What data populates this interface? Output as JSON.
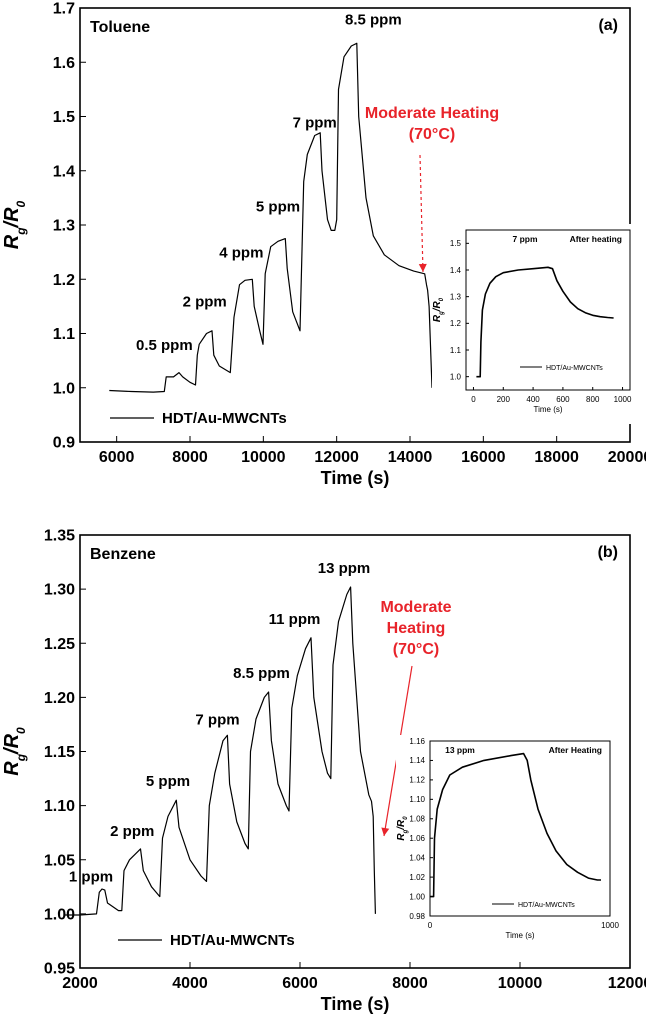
{
  "chart_data": [
    {
      "id": "a",
      "type": "line",
      "panel_label": "(a)",
      "gas_label": "Toluene",
      "xlabel": "Time (s)",
      "ylabel_main": "R",
      "ylabel_sub1": "g",
      "ylabel_mid": "/R",
      "ylabel_sub2": "0",
      "xlim": [
        5000,
        20000
      ],
      "ylim": [
        0.9,
        1.7
      ],
      "xticks": [
        6000,
        8000,
        10000,
        12000,
        14000,
        16000,
        18000,
        20000
      ],
      "yticks": [
        0.9,
        1.0,
        1.1,
        1.2,
        1.3,
        1.4,
        1.5,
        1.6,
        1.7
      ],
      "ytick_labels": [
        "0.9",
        "1.0",
        "1.1",
        "1.2",
        "1.3",
        "1.4",
        "1.5",
        "1.6",
        "1.7"
      ],
      "legend": "HDT/Au-MWCNTs",
      "heating_note_line1": "Moderate Heating",
      "heating_note_line2": "(70°C)",
      "accent_color": "#e8232a",
      "concentration_labels": [
        {
          "text": "0.5 ppm",
          "x": 7300,
          "y": 1.07
        },
        {
          "text": "2 ppm",
          "x": 8400,
          "y": 1.15
        },
        {
          "text": "4 ppm",
          "x": 9400,
          "y": 1.24
        },
        {
          "text": "5 ppm",
          "x": 10400,
          "y": 1.325
        },
        {
          "text": "7 ppm",
          "x": 11400,
          "y": 1.48
        },
        {
          "text": "8.5 ppm",
          "x": 13000,
          "y": 1.67
        }
      ],
      "series": [
        {
          "values": [
            [
              5800,
              0.995
            ],
            [
              6400,
              0.993
            ],
            [
              7000,
              0.992
            ],
            [
              7300,
              0.993
            ],
            [
              7350,
              1.02
            ],
            [
              7550,
              1.02
            ],
            [
              7700,
              1.028
            ],
            [
              7800,
              1.02
            ],
            [
              8000,
              1.01
            ],
            [
              8150,
              1.005
            ],
            [
              8200,
              1.06
            ],
            [
              8250,
              1.08
            ],
            [
              8450,
              1.1
            ],
            [
              8600,
              1.105
            ],
            [
              8650,
              1.06
            ],
            [
              8800,
              1.04
            ],
            [
              9100,
              1.028
            ],
            [
              9200,
              1.13
            ],
            [
              9350,
              1.19
            ],
            [
              9500,
              1.198
            ],
            [
              9700,
              1.2
            ],
            [
              9750,
              1.15
            ],
            [
              9900,
              1.105
            ],
            [
              9990,
              1.08
            ],
            [
              10050,
              1.21
            ],
            [
              10200,
              1.26
            ],
            [
              10400,
              1.27
            ],
            [
              10600,
              1.275
            ],
            [
              10650,
              1.22
            ],
            [
              10800,
              1.14
            ],
            [
              11000,
              1.105
            ],
            [
              11100,
              1.38
            ],
            [
              11200,
              1.43
            ],
            [
              11400,
              1.465
            ],
            [
              11550,
              1.47
            ],
            [
              11600,
              1.4
            ],
            [
              11750,
              1.31
            ],
            [
              11850,
              1.29
            ],
            [
              11950,
              1.29
            ],
            [
              12000,
              1.31
            ],
            [
              12050,
              1.55
            ],
            [
              12200,
              1.61
            ],
            [
              12400,
              1.63
            ],
            [
              12550,
              1.635
            ],
            [
              12600,
              1.5
            ],
            [
              12800,
              1.35
            ],
            [
              13000,
              1.28
            ],
            [
              13300,
              1.245
            ],
            [
              13700,
              1.225
            ],
            [
              14100,
              1.215
            ],
            [
              14400,
              1.21
            ],
            [
              14450,
              1.19
            ],
            [
              14480,
              1.18
            ],
            [
              14520,
              1.15
            ],
            [
              14600,
              1.0
            ]
          ]
        }
      ],
      "inset": {
        "type": "line",
        "title": "After heating",
        "peak_label": "7 ppm",
        "legend": "HDT/Au-MWCNTs",
        "xlabel": "Time (s)",
        "ylabel_main": "R",
        "ylabel_sub1": "g",
        "ylabel_mid": "/R",
        "ylabel_sub2": "0",
        "xlim": [
          -50,
          1050
        ],
        "ylim": [
          0.95,
          1.55
        ],
        "xticks": [
          0,
          200,
          400,
          600,
          800,
          1000
        ],
        "yticks": [
          1.0,
          1.1,
          1.2,
          1.3,
          1.4,
          1.5
        ],
        "ytick_labels": [
          "1.0",
          "1.1",
          "1.2",
          "1.3",
          "1.4",
          "1.5"
        ],
        "values": [
          [
            20,
            1.0
          ],
          [
            45,
            1.0
          ],
          [
            50,
            1.13
          ],
          [
            60,
            1.25
          ],
          [
            80,
            1.31
          ],
          [
            110,
            1.35
          ],
          [
            150,
            1.375
          ],
          [
            200,
            1.39
          ],
          [
            300,
            1.4
          ],
          [
            400,
            1.405
          ],
          [
            500,
            1.41
          ],
          [
            530,
            1.405
          ],
          [
            560,
            1.36
          ],
          [
            600,
            1.32
          ],
          [
            650,
            1.28
          ],
          [
            700,
            1.255
          ],
          [
            750,
            1.24
          ],
          [
            800,
            1.23
          ],
          [
            850,
            1.225
          ],
          [
            900,
            1.222
          ],
          [
            940,
            1.22
          ]
        ]
      }
    },
    {
      "id": "b",
      "type": "line",
      "panel_label": "(b)",
      "gas_label": "Benzene",
      "xlabel": "Time (s)",
      "ylabel_main": "R",
      "ylabel_sub1": "g",
      "ylabel_mid": "/R",
      "ylabel_sub2": "0",
      "xlim": [
        2000,
        12000
      ],
      "ylim": [
        0.95,
        1.35
      ],
      "xticks": [
        2000,
        4000,
        6000,
        8000,
        10000,
        12000
      ],
      "yticks": [
        0.95,
        1.0,
        1.05,
        1.1,
        1.15,
        1.2,
        1.25,
        1.3,
        1.35
      ],
      "ytick_labels": [
        "0.95",
        "1.00",
        "1.05",
        "1.10",
        "1.15",
        "1.20",
        "1.25",
        "1.30",
        "1.35"
      ],
      "legend": "HDT/Au-MWCNTs",
      "heating_note_line1": "Moderate",
      "heating_note_line2": "Heating",
      "heating_note_line3": "(70°C)",
      "accent_color": "#e8232a",
      "concentration_labels": [
        {
          "text": "1 ppm",
          "x": 2200,
          "y": 1.03
        },
        {
          "text": "2 ppm",
          "x": 2950,
          "y": 1.072
        },
        {
          "text": "5 ppm",
          "x": 3600,
          "y": 1.118
        },
        {
          "text": "7 ppm",
          "x": 4500,
          "y": 1.175
        },
        {
          "text": "8.5 ppm",
          "x": 5300,
          "y": 1.218
        },
        {
          "text": "11 ppm",
          "x": 5900,
          "y": 1.268
        },
        {
          "text": "13 ppm",
          "x": 6800,
          "y": 1.315
        }
      ],
      "series": [
        {
          "values": [
            [
              1700,
              0.999
            ],
            [
              2000,
              0.999
            ],
            [
              2300,
              1.0
            ],
            [
              2350,
              1.02
            ],
            [
              2400,
              1.023
            ],
            [
              2450,
              1.022
            ],
            [
              2500,
              1.01
            ],
            [
              2700,
              1.003
            ],
            [
              2760,
              1.003
            ],
            [
              2800,
              1.04
            ],
            [
              2900,
              1.05
            ],
            [
              3100,
              1.06
            ],
            [
              3150,
              1.04
            ],
            [
              3300,
              1.025
            ],
            [
              3450,
              1.016
            ],
            [
              3500,
              1.07
            ],
            [
              3600,
              1.09
            ],
            [
              3750,
              1.105
            ],
            [
              3800,
              1.08
            ],
            [
              4000,
              1.05
            ],
            [
              4200,
              1.035
            ],
            [
              4300,
              1.03
            ],
            [
              4350,
              1.1
            ],
            [
              4450,
              1.13
            ],
            [
              4600,
              1.16
            ],
            [
              4680,
              1.165
            ],
            [
              4720,
              1.12
            ],
            [
              4850,
              1.085
            ],
            [
              5000,
              1.065
            ],
            [
              5060,
              1.06
            ],
            [
              5100,
              1.15
            ],
            [
              5200,
              1.18
            ],
            [
              5350,
              1.2
            ],
            [
              5430,
              1.205
            ],
            [
              5480,
              1.16
            ],
            [
              5600,
              1.12
            ],
            [
              5750,
              1.1
            ],
            [
              5800,
              1.095
            ],
            [
              5850,
              1.19
            ],
            [
              5950,
              1.22
            ],
            [
              6100,
              1.245
            ],
            [
              6200,
              1.255
            ],
            [
              6250,
              1.2
            ],
            [
              6400,
              1.15
            ],
            [
              6500,
              1.13
            ],
            [
              6560,
              1.125
            ],
            [
              6600,
              1.23
            ],
            [
              6700,
              1.27
            ],
            [
              6850,
              1.295
            ],
            [
              6920,
              1.302
            ],
            [
              6960,
              1.25
            ],
            [
              7100,
              1.15
            ],
            [
              7250,
              1.11
            ],
            [
              7300,
              1.104
            ],
            [
              7330,
              1.09
            ],
            [
              7350,
              1.04
            ],
            [
              7370,
              1.0
            ]
          ]
        }
      ],
      "inset": {
        "type": "line",
        "title": "After Heating",
        "peak_label": "13 ppm",
        "legend": "HDT/Au-MWCNTs",
        "xlabel": "Time (s)",
        "ylabel_main": "R",
        "ylabel_sub1": "g",
        "ylabel_mid": "/R",
        "ylabel_sub2": "0",
        "xlim": [
          0,
          1000
        ],
        "ylim": [
          0.98,
          1.16
        ],
        "xticks": [
          0,
          1000
        ],
        "yticks": [
          0.98,
          1.0,
          1.02,
          1.04,
          1.06,
          1.08,
          1.1,
          1.12,
          1.14,
          1.16
        ],
        "ytick_labels": [
          "0.98",
          "1.00",
          "1.02",
          "1.04",
          "1.06",
          "1.08",
          "1.10",
          "1.12",
          "1.14",
          "1.16"
        ],
        "values": [
          [
            0,
            1.0
          ],
          [
            20,
            1.0
          ],
          [
            25,
            1.06
          ],
          [
            40,
            1.09
          ],
          [
            70,
            1.11
          ],
          [
            110,
            1.125
          ],
          [
            180,
            1.133
          ],
          [
            300,
            1.14
          ],
          [
            450,
            1.145
          ],
          [
            520,
            1.147
          ],
          [
            540,
            1.14
          ],
          [
            560,
            1.12
          ],
          [
            600,
            1.09
          ],
          [
            650,
            1.065
          ],
          [
            700,
            1.047
          ],
          [
            760,
            1.033
          ],
          [
            820,
            1.025
          ],
          [
            880,
            1.019
          ],
          [
            930,
            1.017
          ],
          [
            950,
            1.017
          ]
        ]
      }
    }
  ]
}
